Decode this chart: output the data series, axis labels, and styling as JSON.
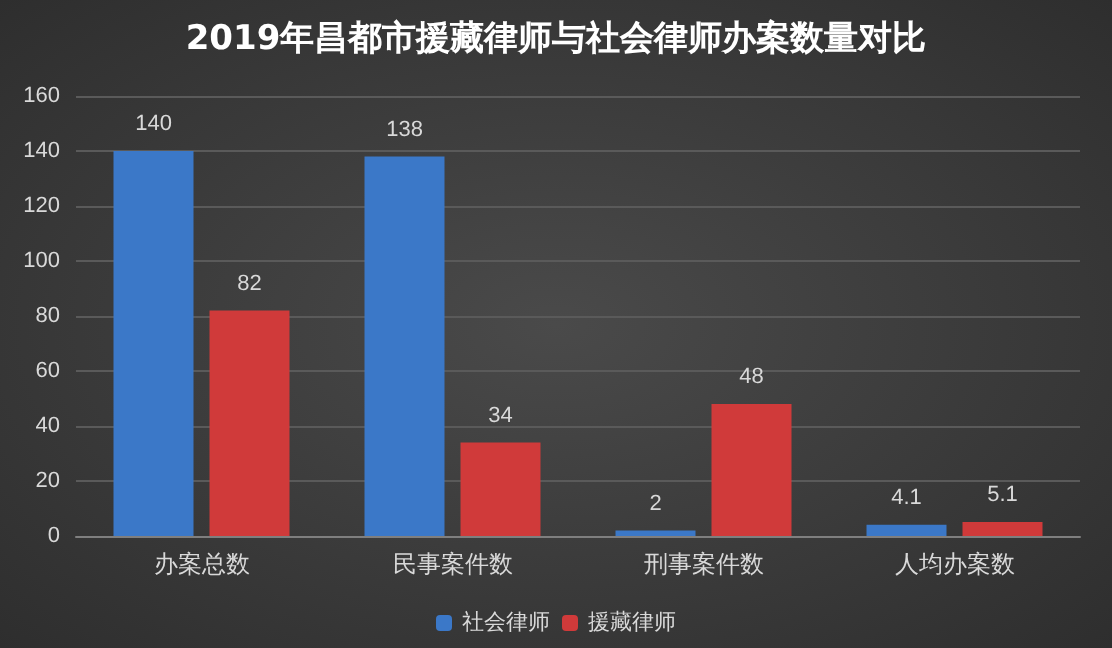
{
  "chart_data": {
    "type": "bar",
    "title": "2019年昌都市援藏律师与社会律师办案数量对比",
    "categories": [
      "办案总数",
      "民事案件数",
      "刑事案件数",
      "人均办案数"
    ],
    "series": [
      {
        "name": "社会律师",
        "color": "#3b78c8",
        "values": [
          140,
          138,
          2,
          4.1
        ]
      },
      {
        "name": "援藏律师",
        "color": "#d03a3a",
        "values": [
          82,
          34,
          48,
          5.1
        ]
      }
    ],
    "ylim": [
      0,
      160
    ],
    "yticks": [
      0,
      20,
      40,
      60,
      80,
      100,
      120,
      140,
      160
    ],
    "grid": "y",
    "legend": "bottom",
    "data_labels": true
  }
}
